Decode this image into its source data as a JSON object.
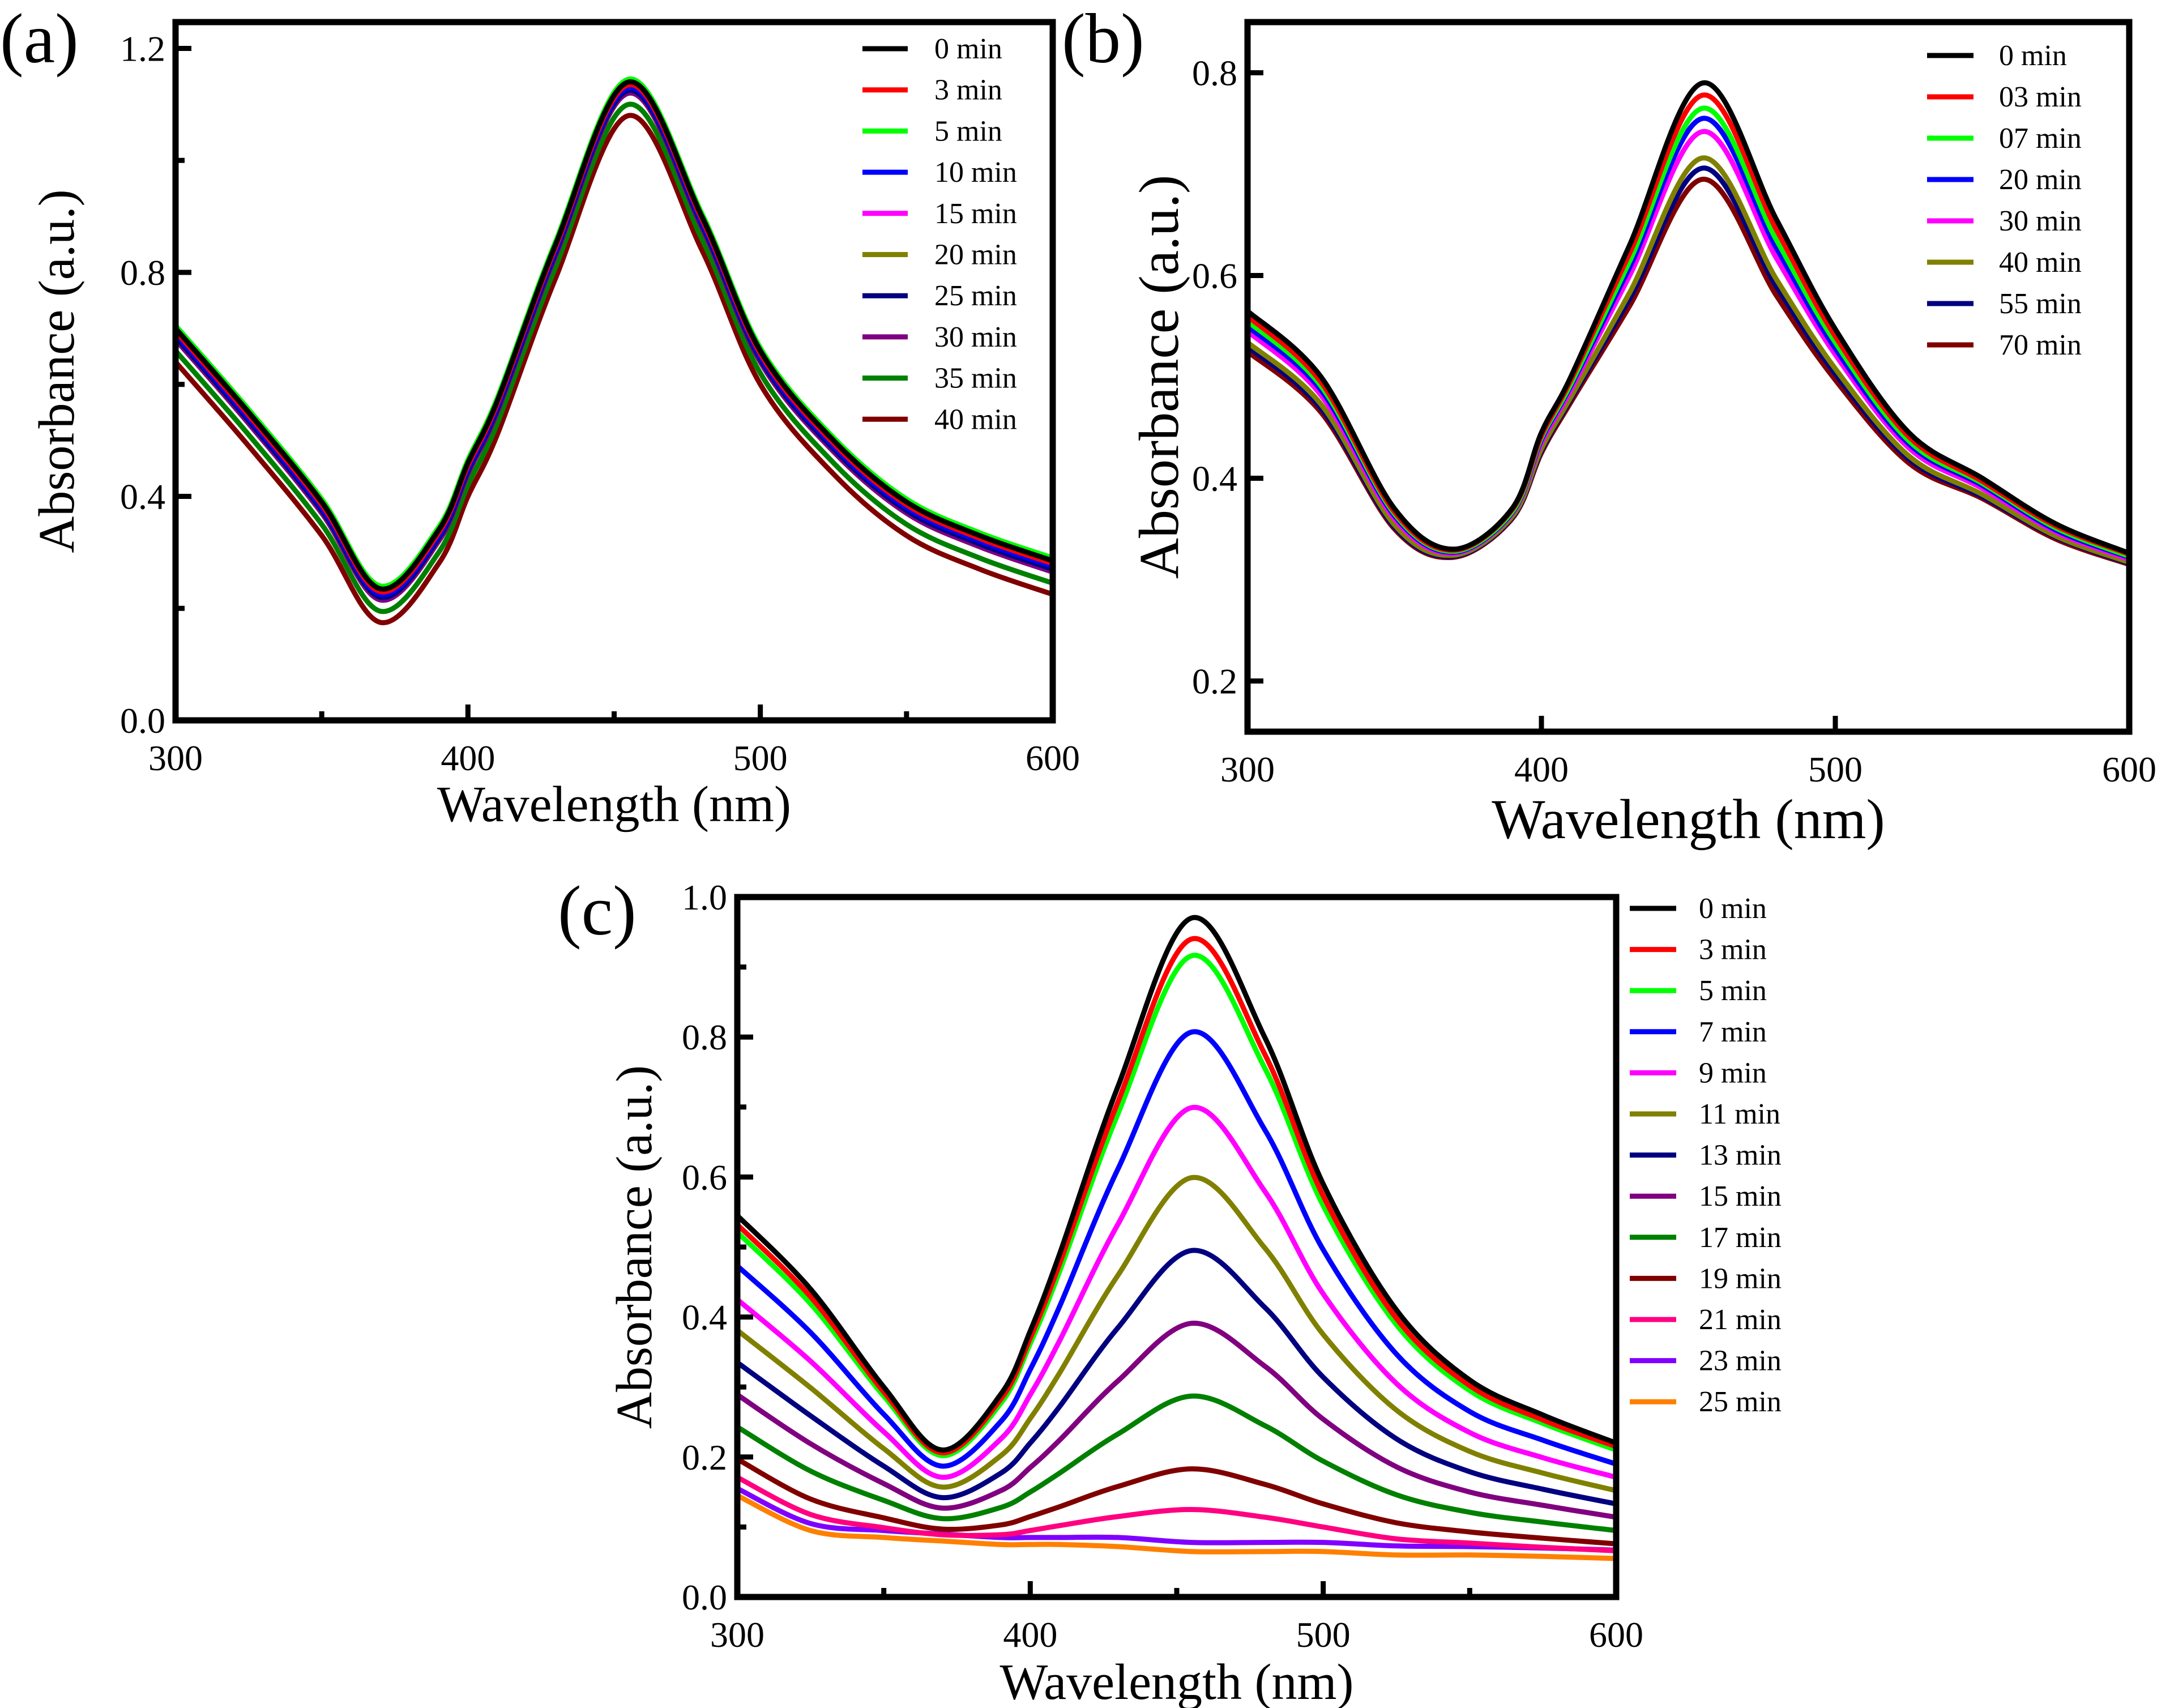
{
  "chart_data": [
    {
      "type": "line",
      "panel_label": "(a)",
      "xlabel": "Wavelength (nm)",
      "ylabel": "Absorbance (a.u.)",
      "xlim": [
        300,
        600
      ],
      "ylim": [
        0,
        1.247
      ],
      "xticks": [
        "300",
        "400",
        "500",
        "600"
      ],
      "yticks": [
        "0.0",
        "0.4",
        "0.8",
        "1.2"
      ],
      "legend_position": "top-right",
      "x": [
        300,
        325,
        350,
        370,
        390,
        400,
        410,
        430,
        455,
        480,
        500,
        525,
        550,
        575,
        600
      ],
      "series": [
        {
          "name": "0 min",
          "color": "#000000",
          "values": [
            0.7,
            0.55,
            0.39,
            0.235,
            0.34,
            0.46,
            0.57,
            0.85,
            1.14,
            0.9,
            0.66,
            0.5,
            0.39,
            0.33,
            0.285
          ]
        },
        {
          "name": "3 min",
          "color": "#ff0000",
          "values": [
            0.695,
            0.545,
            0.385,
            0.23,
            0.335,
            0.455,
            0.565,
            0.845,
            1.135,
            0.895,
            0.655,
            0.495,
            0.385,
            0.325,
            0.28
          ]
        },
        {
          "name": "5 min",
          "color": "#00ff00",
          "values": [
            0.705,
            0.555,
            0.395,
            0.24,
            0.345,
            0.465,
            0.575,
            0.855,
            1.145,
            0.905,
            0.665,
            0.505,
            0.395,
            0.335,
            0.29
          ]
        },
        {
          "name": "10 min",
          "color": "#0000ff",
          "values": [
            0.69,
            0.54,
            0.38,
            0.225,
            0.33,
            0.45,
            0.56,
            0.84,
            1.13,
            0.89,
            0.65,
            0.49,
            0.38,
            0.32,
            0.275
          ]
        },
        {
          "name": "15 min",
          "color": "#ff00ff",
          "values": [
            0.695,
            0.545,
            0.385,
            0.23,
            0.335,
            0.455,
            0.565,
            0.845,
            1.135,
            0.895,
            0.655,
            0.495,
            0.385,
            0.325,
            0.28
          ]
        },
        {
          "name": "20 min",
          "color": "#808000",
          "values": [
            0.705,
            0.555,
            0.395,
            0.24,
            0.345,
            0.465,
            0.575,
            0.855,
            1.145,
            0.905,
            0.665,
            0.505,
            0.395,
            0.335,
            0.29
          ]
        },
        {
          "name": "25 min",
          "color": "#000080",
          "values": [
            0.685,
            0.535,
            0.375,
            0.22,
            0.325,
            0.445,
            0.555,
            0.835,
            1.125,
            0.885,
            0.645,
            0.485,
            0.375,
            0.315,
            0.27
          ]
        },
        {
          "name": "30 min",
          "color": "#800080",
          "values": [
            0.68,
            0.53,
            0.37,
            0.215,
            0.32,
            0.44,
            0.55,
            0.83,
            1.12,
            0.88,
            0.64,
            0.48,
            0.37,
            0.31,
            0.265
          ]
        },
        {
          "name": "35 min",
          "color": "#008000",
          "values": [
            0.66,
            0.51,
            0.35,
            0.195,
            0.3,
            0.42,
            0.53,
            0.81,
            1.1,
            0.86,
            0.62,
            0.46,
            0.35,
            0.29,
            0.245
          ]
        },
        {
          "name": "40 min",
          "color": "#800000",
          "values": [
            0.64,
            0.49,
            0.33,
            0.175,
            0.28,
            0.4,
            0.51,
            0.79,
            1.08,
            0.84,
            0.6,
            0.44,
            0.33,
            0.27,
            0.225
          ]
        }
      ]
    },
    {
      "type": "line",
      "panel_label": "(b)",
      "xlabel": "Wavelength (nm)",
      "ylabel": "Absorbance (a.u.)",
      "xlim": [
        300,
        600
      ],
      "ylim": [
        0.15,
        0.85
      ],
      "xticks": [
        "300",
        "400",
        "500",
        "600"
      ],
      "yticks": [
        "0.2",
        "0.4",
        "0.6",
        "0.8"
      ],
      "legend_position": "top-right",
      "x": [
        300,
        325,
        350,
        370,
        390,
        400,
        410,
        430,
        455,
        480,
        500,
        525,
        550,
        575,
        600
      ],
      "series": [
        {
          "name": "0 min",
          "color": "#000000",
          "values": [
            0.565,
            0.5,
            0.37,
            0.33,
            0.37,
            0.445,
            0.5,
            0.63,
            0.79,
            0.655,
            0.547,
            0.445,
            0.4,
            0.355,
            0.326
          ]
        },
        {
          "name": "03 min",
          "color": "#ff0000",
          "values": [
            0.56,
            0.495,
            0.367,
            0.329,
            0.369,
            0.442,
            0.497,
            0.622,
            0.778,
            0.645,
            0.54,
            0.441,
            0.397,
            0.353,
            0.325
          ]
        },
        {
          "name": "07 min",
          "color": "#00ff00",
          "values": [
            0.555,
            0.491,
            0.365,
            0.328,
            0.367,
            0.44,
            0.493,
            0.614,
            0.765,
            0.635,
            0.534,
            0.437,
            0.395,
            0.351,
            0.323
          ]
        },
        {
          "name": "20 min",
          "color": "#0000ff",
          "values": [
            0.55,
            0.487,
            0.363,
            0.327,
            0.366,
            0.438,
            0.491,
            0.608,
            0.755,
            0.627,
            0.528,
            0.434,
            0.393,
            0.349,
            0.322
          ]
        },
        {
          "name": "30 min",
          "color": "#ff00ff",
          "values": [
            0.545,
            0.482,
            0.36,
            0.326,
            0.365,
            0.435,
            0.487,
            0.6,
            0.742,
            0.617,
            0.522,
            0.43,
            0.39,
            0.347,
            0.32
          ]
        },
        {
          "name": "40 min",
          "color": "#808000",
          "values": [
            0.534,
            0.473,
            0.354,
            0.324,
            0.362,
            0.429,
            0.48,
            0.583,
            0.716,
            0.596,
            0.508,
            0.422,
            0.384,
            0.343,
            0.317
          ]
        },
        {
          "name": "55 min",
          "color": "#000080",
          "values": [
            0.53,
            0.469,
            0.352,
            0.323,
            0.361,
            0.427,
            0.478,
            0.577,
            0.706,
            0.589,
            0.503,
            0.419,
            0.382,
            0.342,
            0.316
          ]
        },
        {
          "name": "70 min",
          "color": "#800000",
          "values": [
            0.525,
            0.465,
            0.35,
            0.322,
            0.36,
            0.425,
            0.475,
            0.57,
            0.695,
            0.58,
            0.497,
            0.415,
            0.38,
            0.34,
            0.315
          ]
        }
      ]
    },
    {
      "type": "line",
      "panel_label": "(c)",
      "xlabel": "Wavelength (nm)",
      "ylabel": "Absorbance (a.u.)",
      "xlim": [
        300,
        600
      ],
      "ylim": [
        0,
        1.0
      ],
      "xticks": [
        "300",
        "400",
        "500",
        "600"
      ],
      "yticks": [
        "0.0",
        "0.2",
        "0.4",
        "0.6",
        "0.8",
        "1.0"
      ],
      "legend_position": "right-outside",
      "x": [
        300,
        325,
        350,
        370,
        390,
        400,
        410,
        430,
        455,
        480,
        500,
        525,
        550,
        575,
        600
      ],
      "series": [
        {
          "name": "0 min",
          "color": "#000000",
          "values": [
            0.545,
            0.44,
            0.3,
            0.21,
            0.29,
            0.38,
            0.49,
            0.73,
            0.97,
            0.8,
            0.59,
            0.41,
            0.31,
            0.26,
            0.22
          ]
        },
        {
          "name": "3 min",
          "color": "#ff0000",
          "values": [
            0.532,
            0.429,
            0.293,
            0.206,
            0.283,
            0.37,
            0.476,
            0.708,
            0.94,
            0.776,
            0.573,
            0.398,
            0.302,
            0.253,
            0.215
          ]
        },
        {
          "name": "5 min",
          "color": "#00ff00",
          "values": [
            0.521,
            0.419,
            0.287,
            0.202,
            0.277,
            0.362,
            0.465,
            0.691,
            0.916,
            0.756,
            0.559,
            0.389,
            0.295,
            0.248,
            0.21
          ]
        },
        {
          "name": "7 min",
          "color": "#0000ff",
          "values": [
            0.473,
            0.378,
            0.261,
            0.187,
            0.251,
            0.325,
            0.415,
            0.612,
            0.807,
            0.668,
            0.496,
            0.347,
            0.265,
            0.224,
            0.19
          ]
        },
        {
          "name": "9 min",
          "color": "#ff00ff",
          "values": [
            0.425,
            0.337,
            0.236,
            0.171,
            0.226,
            0.289,
            0.366,
            0.533,
            0.699,
            0.58,
            0.433,
            0.305,
            0.235,
            0.199,
            0.171
          ]
        },
        {
          "name": "11 min",
          "color": "#808000",
          "values": [
            0.381,
            0.299,
            0.212,
            0.157,
            0.202,
            0.255,
            0.32,
            0.46,
            0.599,
            0.499,
            0.375,
            0.267,
            0.208,
            0.177,
            0.152
          ]
        },
        {
          "name": "13 min",
          "color": "#000080",
          "values": [
            0.335,
            0.259,
            0.187,
            0.142,
            0.177,
            0.22,
            0.272,
            0.385,
            0.495,
            0.414,
            0.314,
            0.226,
            0.179,
            0.154,
            0.133
          ]
        },
        {
          "name": "15 min",
          "color": "#800080",
          "values": [
            0.289,
            0.219,
            0.162,
            0.127,
            0.152,
            0.185,
            0.224,
            0.309,
            0.391,
            0.33,
            0.254,
            0.186,
            0.15,
            0.131,
            0.114
          ]
        },
        {
          "name": "17 min",
          "color": "#008000",
          "values": [
            0.243,
            0.18,
            0.138,
            0.112,
            0.128,
            0.15,
            0.177,
            0.233,
            0.287,
            0.245,
            0.194,
            0.146,
            0.121,
            0.107,
            0.095
          ]
        },
        {
          "name": "19 min",
          "color": "#800000",
          "values": [
            0.197,
            0.14,
            0.113,
            0.097,
            0.103,
            0.115,
            0.129,
            0.158,
            0.183,
            0.161,
            0.133,
            0.106,
            0.093,
            0.084,
            0.076
          ]
        },
        {
          "name": "21 min",
          "color": "#ff0080",
          "values": [
            0.171,
            0.118,
            0.099,
            0.089,
            0.089,
            0.095,
            0.102,
            0.115,
            0.125,
            0.114,
            0.1,
            0.083,
            0.077,
            0.071,
            0.066
          ]
        },
        {
          "name": "23 min",
          "color": "#8000ff",
          "values": [
            0.155,
            0.105,
            0.095,
            0.09,
            0.085,
            0.085,
            0.085,
            0.085,
            0.078,
            0.078,
            0.078,
            0.073,
            0.072,
            0.07,
            0.067
          ]
        },
        {
          "name": "25 min",
          "color": "#ff8000",
          "values": [
            0.145,
            0.095,
            0.085,
            0.08,
            0.075,
            0.075,
            0.075,
            0.072,
            0.065,
            0.065,
            0.065,
            0.06,
            0.06,
            0.058,
            0.055
          ]
        }
      ]
    }
  ]
}
